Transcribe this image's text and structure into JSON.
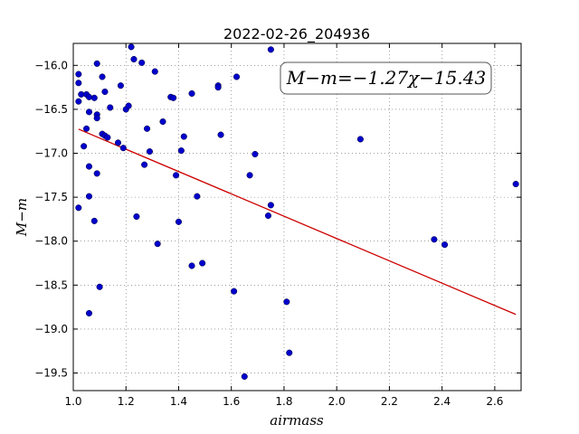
{
  "chart_data": {
    "type": "scatter",
    "title": "2022-02-26_204936",
    "xlabel": "airmass",
    "ylabel": "M−m",
    "xlim": [
      1.0,
      2.7
    ],
    "ylim": [
      -19.7,
      -15.75
    ],
    "y_inverted": true,
    "grid": true,
    "xticks": [
      1.0,
      1.2,
      1.4,
      1.6,
      1.8,
      2.0,
      2.2,
      2.4,
      2.6
    ],
    "xtick_labels": [
      "1.0",
      "1.2",
      "1.4",
      "1.6",
      "1.8",
      "2.0",
      "2.2",
      "2.4",
      "2.6"
    ],
    "yticks": [
      -16.0,
      -16.5,
      -17.0,
      -17.5,
      -18.0,
      -18.5,
      -19.0,
      -19.5
    ],
    "ytick_labels": [
      "−16.0",
      "−16.5",
      "−17.0",
      "−17.5",
      "−18.0",
      "−18.5",
      "−19.0",
      "−19.5"
    ],
    "annotation": "M−m=−1.27χ−15.43",
    "annotation_position": "top-right",
    "series": [
      {
        "color": "#0000cc",
        "points": [
          [
            1.02,
            -16.1
          ],
          [
            1.02,
            -16.2
          ],
          [
            1.03,
            -16.33
          ],
          [
            1.05,
            -16.33
          ],
          [
            1.02,
            -16.41
          ],
          [
            1.06,
            -16.36
          ],
          [
            1.08,
            -16.37
          ],
          [
            1.09,
            -15.98
          ],
          [
            1.11,
            -16.13
          ],
          [
            1.12,
            -16.3
          ],
          [
            1.06,
            -16.53
          ],
          [
            1.09,
            -16.56
          ],
          [
            1.09,
            -16.6
          ],
          [
            1.14,
            -16.48
          ],
          [
            1.18,
            -16.23
          ],
          [
            1.22,
            -15.79
          ],
          [
            1.23,
            -15.93
          ],
          [
            1.26,
            -15.97
          ],
          [
            1.31,
            -16.07
          ],
          [
            1.2,
            -16.5
          ],
          [
            1.21,
            -16.46
          ],
          [
            1.05,
            -16.72
          ],
          [
            1.04,
            -16.92
          ],
          [
            1.11,
            -16.78
          ],
          [
            1.12,
            -16.8
          ],
          [
            1.13,
            -16.82
          ],
          [
            1.17,
            -16.88
          ],
          [
            1.19,
            -16.94
          ],
          [
            1.28,
            -16.72
          ],
          [
            1.34,
            -16.64
          ],
          [
            1.37,
            -16.36
          ],
          [
            1.38,
            -16.37
          ],
          [
            1.45,
            -16.32
          ],
          [
            1.42,
            -16.81
          ],
          [
            1.41,
            -16.97
          ],
          [
            1.55,
            -16.23
          ],
          [
            1.55,
            -16.25
          ],
          [
            1.62,
            -16.13
          ],
          [
            1.75,
            -15.82
          ],
          [
            1.56,
            -16.79
          ],
          [
            1.69,
            -17.01
          ],
          [
            1.06,
            -17.15
          ],
          [
            1.09,
            -17.23
          ],
          [
            1.29,
            -16.98
          ],
          [
            1.27,
            -17.13
          ],
          [
            1.39,
            -17.25
          ],
          [
            1.06,
            -17.49
          ],
          [
            1.02,
            -17.62
          ],
          [
            1.08,
            -17.77
          ],
          [
            1.24,
            -17.72
          ],
          [
            1.4,
            -17.78
          ],
          [
            1.47,
            -17.49
          ],
          [
            1.67,
            -17.25
          ],
          [
            1.75,
            -17.59
          ],
          [
            1.74,
            -17.71
          ],
          [
            1.32,
            -18.03
          ],
          [
            1.45,
            -18.28
          ],
          [
            1.49,
            -18.25
          ],
          [
            1.1,
            -18.52
          ],
          [
            1.06,
            -18.82
          ],
          [
            1.61,
            -18.57
          ],
          [
            1.81,
            -18.69
          ],
          [
            1.82,
            -19.27
          ],
          [
            1.65,
            -19.54
          ],
          [
            2.09,
            -16.84
          ],
          [
            2.37,
            -17.98
          ],
          [
            2.41,
            -18.04
          ],
          [
            2.68,
            -17.35
          ]
        ]
      }
    ],
    "fit_line": {
      "color": "#cc0000",
      "x": [
        1.02,
        2.68
      ],
      "y": [
        -16.7254,
        -18.8336
      ]
    }
  }
}
